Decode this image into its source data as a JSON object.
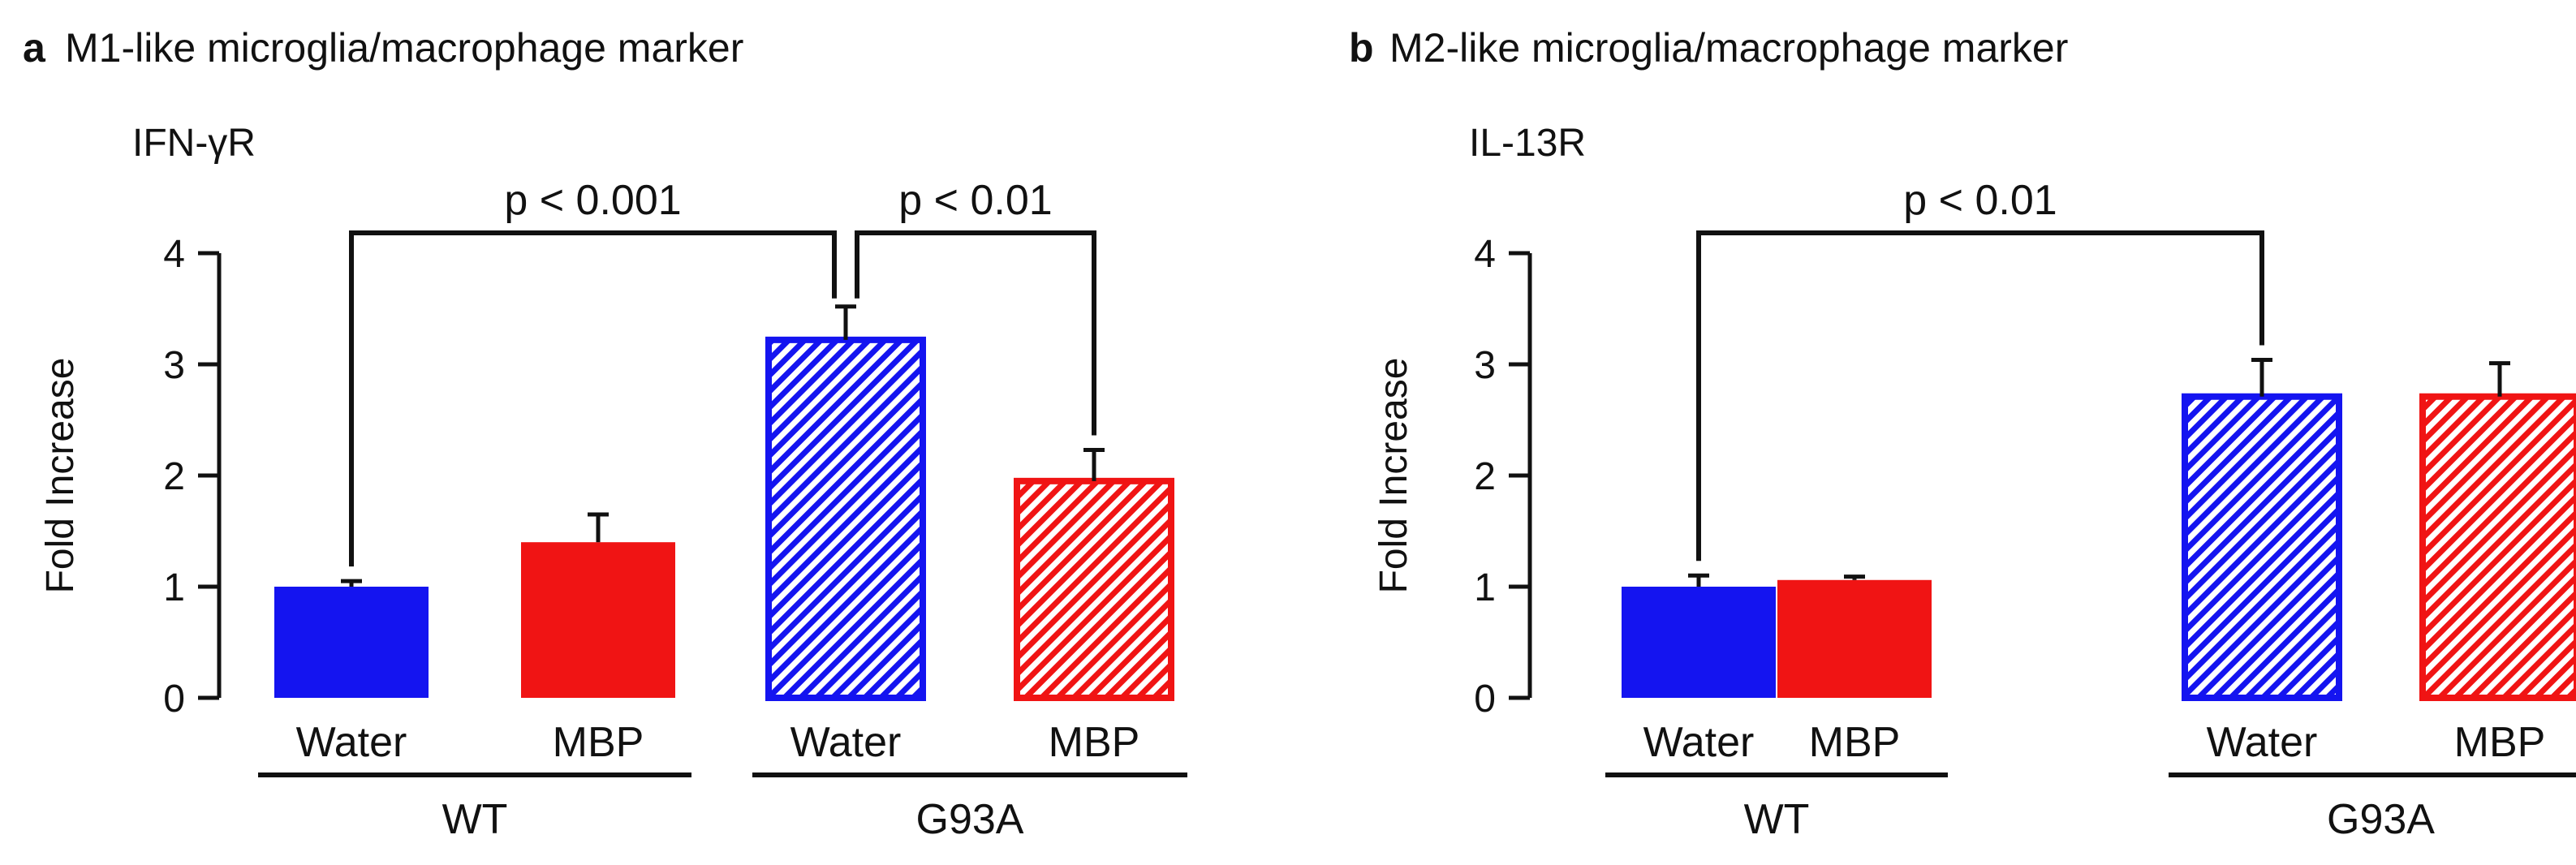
{
  "figure": {
    "panels": [
      {
        "letter": "a",
        "heading": "M1-like microglia/macrophage marker",
        "marker": "IFN-γR"
      },
      {
        "letter": "b",
        "heading": "M2-like microglia/macrophage marker",
        "marker": "IL-13R"
      }
    ]
  },
  "colors": {
    "water": "#1414f0",
    "mbp": "#f01414",
    "axis": "#111111",
    "hatch_bg": "#ffffff"
  },
  "chart_data": [
    {
      "type": "bar",
      "title": "M1-like microglia/macrophage marker",
      "subtitle": "IFN-γR",
      "panel_letter": "a",
      "ylabel": "Fold Increase",
      "ylim": [
        0,
        4
      ],
      "yticks": [
        0,
        1,
        2,
        3,
        4
      ],
      "categories": [
        "Water",
        "MBP",
        "Water",
        "MBP"
      ],
      "groups": [
        {
          "label": "WT",
          "members": [
            0,
            1
          ]
        },
        {
          "label": "G93A",
          "members": [
            2,
            3
          ]
        }
      ],
      "values": [
        1.0,
        1.4,
        3.22,
        1.95
      ],
      "errors": [
        0.05,
        0.25,
        0.3,
        0.28
      ],
      "fill": [
        "solid",
        "solid",
        "hatched",
        "hatched"
      ],
      "color_keys": [
        "water",
        "mbp",
        "water",
        "mbp"
      ],
      "comparisons": [
        {
          "from": 0,
          "to": 2,
          "label": "p < 0.001"
        },
        {
          "from": 2,
          "to": 3,
          "label": "p < 0.01"
        }
      ],
      "grid": false
    },
    {
      "type": "bar",
      "title": "M2-like microglia/macrophage marker",
      "subtitle": "IL-13R",
      "panel_letter": "b",
      "ylabel": "Fold Increase",
      "ylim": [
        0,
        4
      ],
      "yticks": [
        0,
        1,
        2,
        3,
        4
      ],
      "categories": [
        "Water",
        "MBP",
        "Water",
        "MBP"
      ],
      "groups": [
        {
          "label": "WT",
          "members": [
            0,
            1
          ]
        },
        {
          "label": "G93A",
          "members": [
            2,
            3
          ]
        }
      ],
      "values": [
        1.0,
        1.06,
        2.71,
        2.71
      ],
      "errors": [
        0.1,
        0.03,
        0.33,
        0.3
      ],
      "fill": [
        "solid",
        "solid",
        "hatched",
        "hatched"
      ],
      "color_keys": [
        "water",
        "mbp",
        "water",
        "mbp"
      ],
      "comparisons": [
        {
          "from": 0,
          "to": 2,
          "label": "p < 0.01"
        }
      ],
      "grid": false
    }
  ]
}
